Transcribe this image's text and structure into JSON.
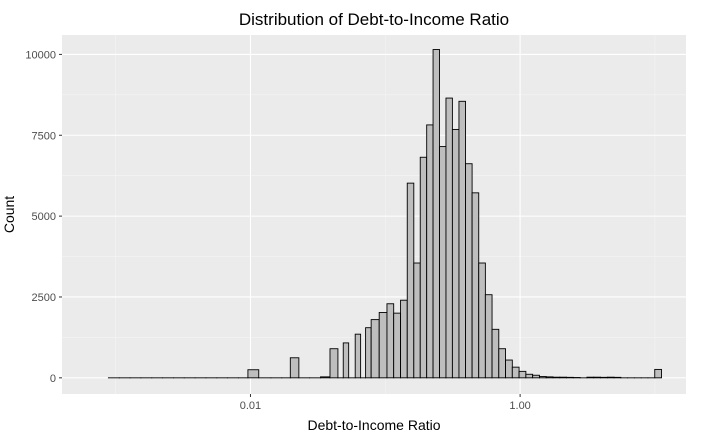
{
  "chart_data": {
    "type": "bar",
    "title": "Distribution of Debt-to-Income Ratio",
    "xlabel": "Debt-to-Income Ratio",
    "ylabel": "Count",
    "x_scale": "log10",
    "xlim": [
      0.0004,
      17
    ],
    "ylim": [
      -500,
      10600
    ],
    "x_ticks": [
      {
        "value": 0.01,
        "label": "0.01"
      },
      {
        "value": 1.0,
        "label": "1.00"
      }
    ],
    "y_ticks": [
      {
        "value": 0,
        "label": "0"
      },
      {
        "value": 2500,
        "label": "2500"
      },
      {
        "value": 5000,
        "label": "5000"
      },
      {
        "value": 7500,
        "label": "7500"
      },
      {
        "value": 10000,
        "label": "10000"
      }
    ],
    "grid": true,
    "legend": "none",
    "colors": {
      "panel_background": "#ebebeb",
      "grid_major": "#ffffff",
      "grid_minor": "#f5f5f5",
      "bar_fill": "#bebebe",
      "bar_outline": "#000000"
    },
    "bins": [
      {
        "x": 0.00097,
        "count": 0
      },
      {
        "x": 0.00117,
        "count": 0
      },
      {
        "x": 0.0014,
        "count": 0
      },
      {
        "x": 0.00169,
        "count": 0
      },
      {
        "x": 0.00203,
        "count": 0
      },
      {
        "x": 0.00245,
        "count": 0
      },
      {
        "x": 0.00294,
        "count": 0
      },
      {
        "x": 0.00354,
        "count": 0
      },
      {
        "x": 0.00426,
        "count": 0
      },
      {
        "x": 0.00513,
        "count": 0
      },
      {
        "x": 0.00617,
        "count": 0
      },
      {
        "x": 0.00742,
        "count": 0
      },
      {
        "x": 0.00893,
        "count": 0
      },
      {
        "x": 0.01026,
        "count": 250
      },
      {
        "x": 0.01293,
        "count": 0
      },
      {
        "x": 0.01556,
        "count": 0
      },
      {
        "x": 0.01872,
        "count": 0
      },
      {
        "x": 0.02083,
        "count": 620
      },
      {
        "x": 0.02507,
        "count": 0
      },
      {
        "x": 0.03016,
        "count": 0
      },
      {
        "x": 0.03629,
        "count": 30
      },
      {
        "x": 0.04167,
        "count": 900
      },
      {
        "x": 0.04758,
        "count": 0
      },
      {
        "x": 0.05,
        "count": 1080
      },
      {
        "x": 0.05725,
        "count": 0
      },
      {
        "x": 0.0625,
        "count": 1350
      },
      {
        "x": 0.06889,
        "count": 0
      },
      {
        "x": 0.07407,
        "count": 1550
      },
      {
        "x": 0.0833,
        "count": 1800
      },
      {
        "x": 0.0975,
        "count": 2020
      },
      {
        "x": 0.1086,
        "count": 2290
      },
      {
        "x": 0.1227,
        "count": 2000
      },
      {
        "x": 0.1373,
        "count": 2400
      },
      {
        "x": 0.1542,
        "count": 6020
      },
      {
        "x": 0.1717,
        "count": 3550
      },
      {
        "x": 0.1922,
        "count": 6820
      },
      {
        "x": 0.214,
        "count": 7820
      },
      {
        "x": 0.2389,
        "count": 10150
      },
      {
        "x": 0.267,
        "count": 7150
      },
      {
        "x": 0.2975,
        "count": 8650
      },
      {
        "x": 0.3327,
        "count": 7680
      },
      {
        "x": 0.3721,
        "count": 8550
      },
      {
        "x": 0.4162,
        "count": 6620
      },
      {
        "x": 0.4661,
        "count": 5720
      },
      {
        "x": 0.5219,
        "count": 3550
      },
      {
        "x": 0.5847,
        "count": 2570
      },
      {
        "x": 0.6558,
        "count": 1500
      },
      {
        "x": 0.7361,
        "count": 900
      },
      {
        "x": 0.8262,
        "count": 550
      },
      {
        "x": 0.9274,
        "count": 330
      },
      {
        "x": 1.041,
        "count": 200
      },
      {
        "x": 1.169,
        "count": 110
      },
      {
        "x": 1.313,
        "count": 80
      },
      {
        "x": 1.474,
        "count": 40
      },
      {
        "x": 1.656,
        "count": 30
      },
      {
        "x": 1.859,
        "count": 20
      },
      {
        "x": 2.088,
        "count": 20
      },
      {
        "x": 2.344,
        "count": 15
      },
      {
        "x": 2.632,
        "count": 10
      },
      {
        "x": 2.955,
        "count": 0
      },
      {
        "x": 3.318,
        "count": 20
      },
      {
        "x": 3.726,
        "count": 20
      },
      {
        "x": 4.183,
        "count": 15
      },
      {
        "x": 4.697,
        "count": 20
      },
      {
        "x": 5.274,
        "count": 15
      },
      {
        "x": 5.92,
        "count": 0
      },
      {
        "x": 6.647,
        "count": 0
      },
      {
        "x": 7.462,
        "count": 0
      },
      {
        "x": 8.379,
        "count": 0
      },
      {
        "x": 9.407,
        "count": 0
      },
      {
        "x": 10.56,
        "count": 260
      }
    ]
  }
}
